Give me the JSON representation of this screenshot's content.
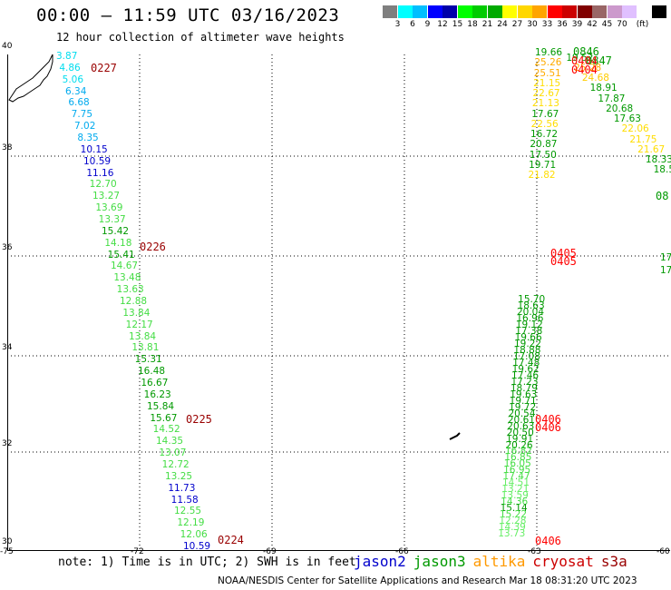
{
  "header": {
    "title": "00:00 – 11:59 UTC 03/16/2023",
    "subtitle": "12 hour collection of altimeter wave heights"
  },
  "colorbar": {
    "colors": [
      "#7f7f7f",
      "#00ffff",
      "#00bfff",
      "#0000ff",
      "#0000aa",
      "#00ff00",
      "#00cc00",
      "#00aa00",
      "#ffff00",
      "#ffd700",
      "#ffa500",
      "#ff0000",
      "#cc0000",
      "#800000",
      "#996666",
      "#cc99cc",
      "#e0c0ff",
      "#ffffff",
      "#000000"
    ],
    "tick_labels": [
      "3",
      "6",
      "9",
      "12",
      "15",
      "18",
      "21",
      "24",
      "27",
      "30",
      "33",
      "36",
      "39",
      "42",
      "45",
      "70",
      "(ft)"
    ]
  },
  "axes": {
    "lat_labels": [
      "40",
      "38",
      "36",
      "34",
      "32",
      "30"
    ],
    "lon_labels": [
      "-75",
      "-72",
      "-69",
      "-66",
      "-63",
      "-60"
    ]
  },
  "track_left": [
    {
      "t": "3.87",
      "c": "#00ddee"
    },
    {
      "t": "4.86",
      "c": "#00ddee"
    },
    {
      "t": "5.06",
      "c": "#00ddee"
    },
    {
      "t": "6.34",
      "c": "#00aaee"
    },
    {
      "t": "6.68",
      "c": "#00aaee"
    },
    {
      "t": "7.75",
      "c": "#00aaee"
    },
    {
      "t": "7.02",
      "c": "#00aaee"
    },
    {
      "t": "8.35",
      "c": "#00aaee"
    },
    {
      "t": "10.15",
      "c": "#0000cc"
    },
    {
      "t": "10.59",
      "c": "#0000cc"
    },
    {
      "t": "11.16",
      "c": "#0000cc"
    },
    {
      "t": "12.70",
      "c": "#44dd44"
    },
    {
      "t": "13.27",
      "c": "#44dd44"
    },
    {
      "t": "13.69",
      "c": "#44dd44"
    },
    {
      "t": "13.37",
      "c": "#44dd44"
    },
    {
      "t": "15.42",
      "c": "#009900"
    },
    {
      "t": "14.18",
      "c": "#44dd44"
    },
    {
      "t": "15.41",
      "c": "#009900"
    },
    {
      "t": "14.67",
      "c": "#44dd44"
    },
    {
      "t": "13.48",
      "c": "#44dd44"
    },
    {
      "t": "13.63",
      "c": "#44dd44"
    },
    {
      "t": "12.88",
      "c": "#44dd44"
    },
    {
      "t": "13.84",
      "c": "#44dd44"
    },
    {
      "t": "12.17",
      "c": "#44dd44"
    },
    {
      "t": "13.84",
      "c": "#44dd44"
    },
    {
      "t": "13.81",
      "c": "#44dd44"
    },
    {
      "t": "15.31",
      "c": "#009900"
    },
    {
      "t": "16.48",
      "c": "#009900"
    },
    {
      "t": "16.67",
      "c": "#009900"
    },
    {
      "t": "16.23",
      "c": "#009900"
    },
    {
      "t": "15.84",
      "c": "#009900"
    },
    {
      "t": "15.67",
      "c": "#009900"
    },
    {
      "t": "14.52",
      "c": "#44dd44"
    },
    {
      "t": "14.35",
      "c": "#44dd44"
    },
    {
      "t": "13.07",
      "c": "#44dd44"
    },
    {
      "t": "12.72",
      "c": "#44dd44"
    },
    {
      "t": "13.25",
      "c": "#44dd44"
    },
    {
      "t": "11.73",
      "c": "#0000cc"
    },
    {
      "t": "11.58",
      "c": "#0000cc"
    },
    {
      "t": "12.55",
      "c": "#44dd44"
    },
    {
      "t": "12.19",
      "c": "#44dd44"
    },
    {
      "t": "12.06",
      "c": "#44dd44"
    },
    {
      "t": "10.59",
      "c": "#0000cc"
    }
  ],
  "pass_times": [
    {
      "t": "0227",
      "c": "#990000"
    },
    {
      "t": "0226",
      "c": "#990000"
    },
    {
      "t": "0225",
      "c": "#990000"
    },
    {
      "t": "0224",
      "c": "#990000"
    },
    {
      "t": "0846",
      "c": "#009900"
    },
    {
      "t": "0847",
      "c": "#009900"
    },
    {
      "t": "0404",
      "c": "#ff0000"
    },
    {
      "t": "0404",
      "c": "#ff0000"
    },
    {
      "t": "0405",
      "c": "#ff0000"
    },
    {
      "t": "0405",
      "c": "#ff0000"
    },
    {
      "t": "0406",
      "c": "#ff0000"
    },
    {
      "t": "0406",
      "c": "#ff0000"
    },
    {
      "t": "0406",
      "c": "#ff0000"
    },
    {
      "t": "08",
      "c": "#009900"
    }
  ],
  "track_right": [
    {
      "t": "19.66",
      "c": "#009900"
    },
    {
      "t": "19.52",
      "c": "#009900"
    },
    {
      "t": "25.26",
      "c": "#ffaa00"
    },
    {
      "t": "25.28",
      "c": "#ffaa00"
    },
    {
      "t": "25.51",
      "c": "#ffaa00"
    },
    {
      "t": "24.68",
      "c": "#ffcc00"
    },
    {
      "t": "21.15",
      "c": "#ffdd00"
    },
    {
      "t": "18.91",
      "c": "#009900"
    },
    {
      "t": "22.67",
      "c": "#ffdd00"
    },
    {
      "t": "17.87",
      "c": "#009900"
    },
    {
      "t": "21.13",
      "c": "#ffdd00"
    },
    {
      "t": "20.68",
      "c": "#009900"
    },
    {
      "t": "17.67",
      "c": "#009900"
    },
    {
      "t": "17.63",
      "c": "#009900"
    },
    {
      "t": "22.56",
      "c": "#ffdd00"
    },
    {
      "t": "22.06",
      "c": "#ffdd00"
    },
    {
      "t": "16.72",
      "c": "#009900"
    },
    {
      "t": "21.75",
      "c": "#ffdd00"
    },
    {
      "t": "20.87",
      "c": "#009900"
    },
    {
      "t": "21.67",
      "c": "#ffdd00"
    },
    {
      "t": "17.50",
      "c": "#009900"
    },
    {
      "t": "18.33",
      "c": "#009900"
    },
    {
      "t": "19.71",
      "c": "#009900"
    },
    {
      "t": "18.50",
      "c": "#009900"
    },
    {
      "t": "21.82",
      "c": "#ffdd00"
    },
    {
      "t": "15.70",
      "c": "#009900"
    },
    {
      "t": "18.63",
      "c": "#009900"
    },
    {
      "t": "20.04",
      "c": "#009900"
    },
    {
      "t": "16.96",
      "c": "#009900"
    },
    {
      "t": "19.12",
      "c": "#009900"
    },
    {
      "t": "17.38",
      "c": "#009900"
    },
    {
      "t": "19.66",
      "c": "#009900"
    },
    {
      "t": "19.22",
      "c": "#009900"
    },
    {
      "t": "18.88",
      "c": "#009900"
    },
    {
      "t": "17.08",
      "c": "#009900"
    },
    {
      "t": "17.48",
      "c": "#009900"
    },
    {
      "t": "19.62",
      "c": "#009900"
    },
    {
      "t": "17.46",
      "c": "#009900"
    },
    {
      "t": "17.23",
      "c": "#009900"
    },
    {
      "t": "18.79",
      "c": "#009900"
    },
    {
      "t": "19.63",
      "c": "#009900"
    },
    {
      "t": "19.71",
      "c": "#009900"
    },
    {
      "t": "19.72",
      "c": "#009900"
    },
    {
      "t": "20.54",
      "c": "#009900"
    },
    {
      "t": "20.61",
      "c": "#009900"
    },
    {
      "t": "20.63",
      "c": "#009900"
    },
    {
      "t": "20.50",
      "c": "#009900"
    },
    {
      "t": "19.91",
      "c": "#009900"
    },
    {
      "t": "20.26",
      "c": "#009900"
    },
    {
      "t": "16.82",
      "c": "#44dd44"
    },
    {
      "t": "16.85",
      "c": "#44dd44"
    },
    {
      "t": "16.05",
      "c": "#44dd44"
    },
    {
      "t": "16.95",
      "c": "#44dd44"
    },
    {
      "t": "17.47",
      "c": "#44dd44"
    },
    {
      "t": "14.51",
      "c": "#66ee66"
    },
    {
      "t": "13.21",
      "c": "#66ee66"
    },
    {
      "t": "13.59",
      "c": "#66ee66"
    },
    {
      "t": "14.36",
      "c": "#44dd44"
    },
    {
      "t": "15.14",
      "c": "#009900"
    },
    {
      "t": "15.22",
      "c": "#44dd44"
    },
    {
      "t": "12.28",
      "c": "#66ee66"
    },
    {
      "t": "14.39",
      "c": "#66ee66"
    },
    {
      "t": "13.73",
      "c": "#66ee66"
    },
    {
      "t": "17",
      "c": "#009900"
    },
    {
      "t": "17",
      "c": "#009900"
    }
  ],
  "footer": {
    "note": "note: 1) Time is in UTC; 2) SWH is in feet",
    "satellites": [
      {
        "name": "jason2",
        "color": "#0000cc"
      },
      {
        "name": "jason3",
        "color": "#009900"
      },
      {
        "name": "altika",
        "color": "#ff9900"
      },
      {
        "name": "cryosat",
        "color": "#cc0000"
      },
      {
        "name": "s3a",
        "color": "#990000"
      }
    ],
    "credit": "NOAA/NESDIS Center for Satellite Applications and Research   Mar 18 08:31:20 UTC 2023"
  }
}
